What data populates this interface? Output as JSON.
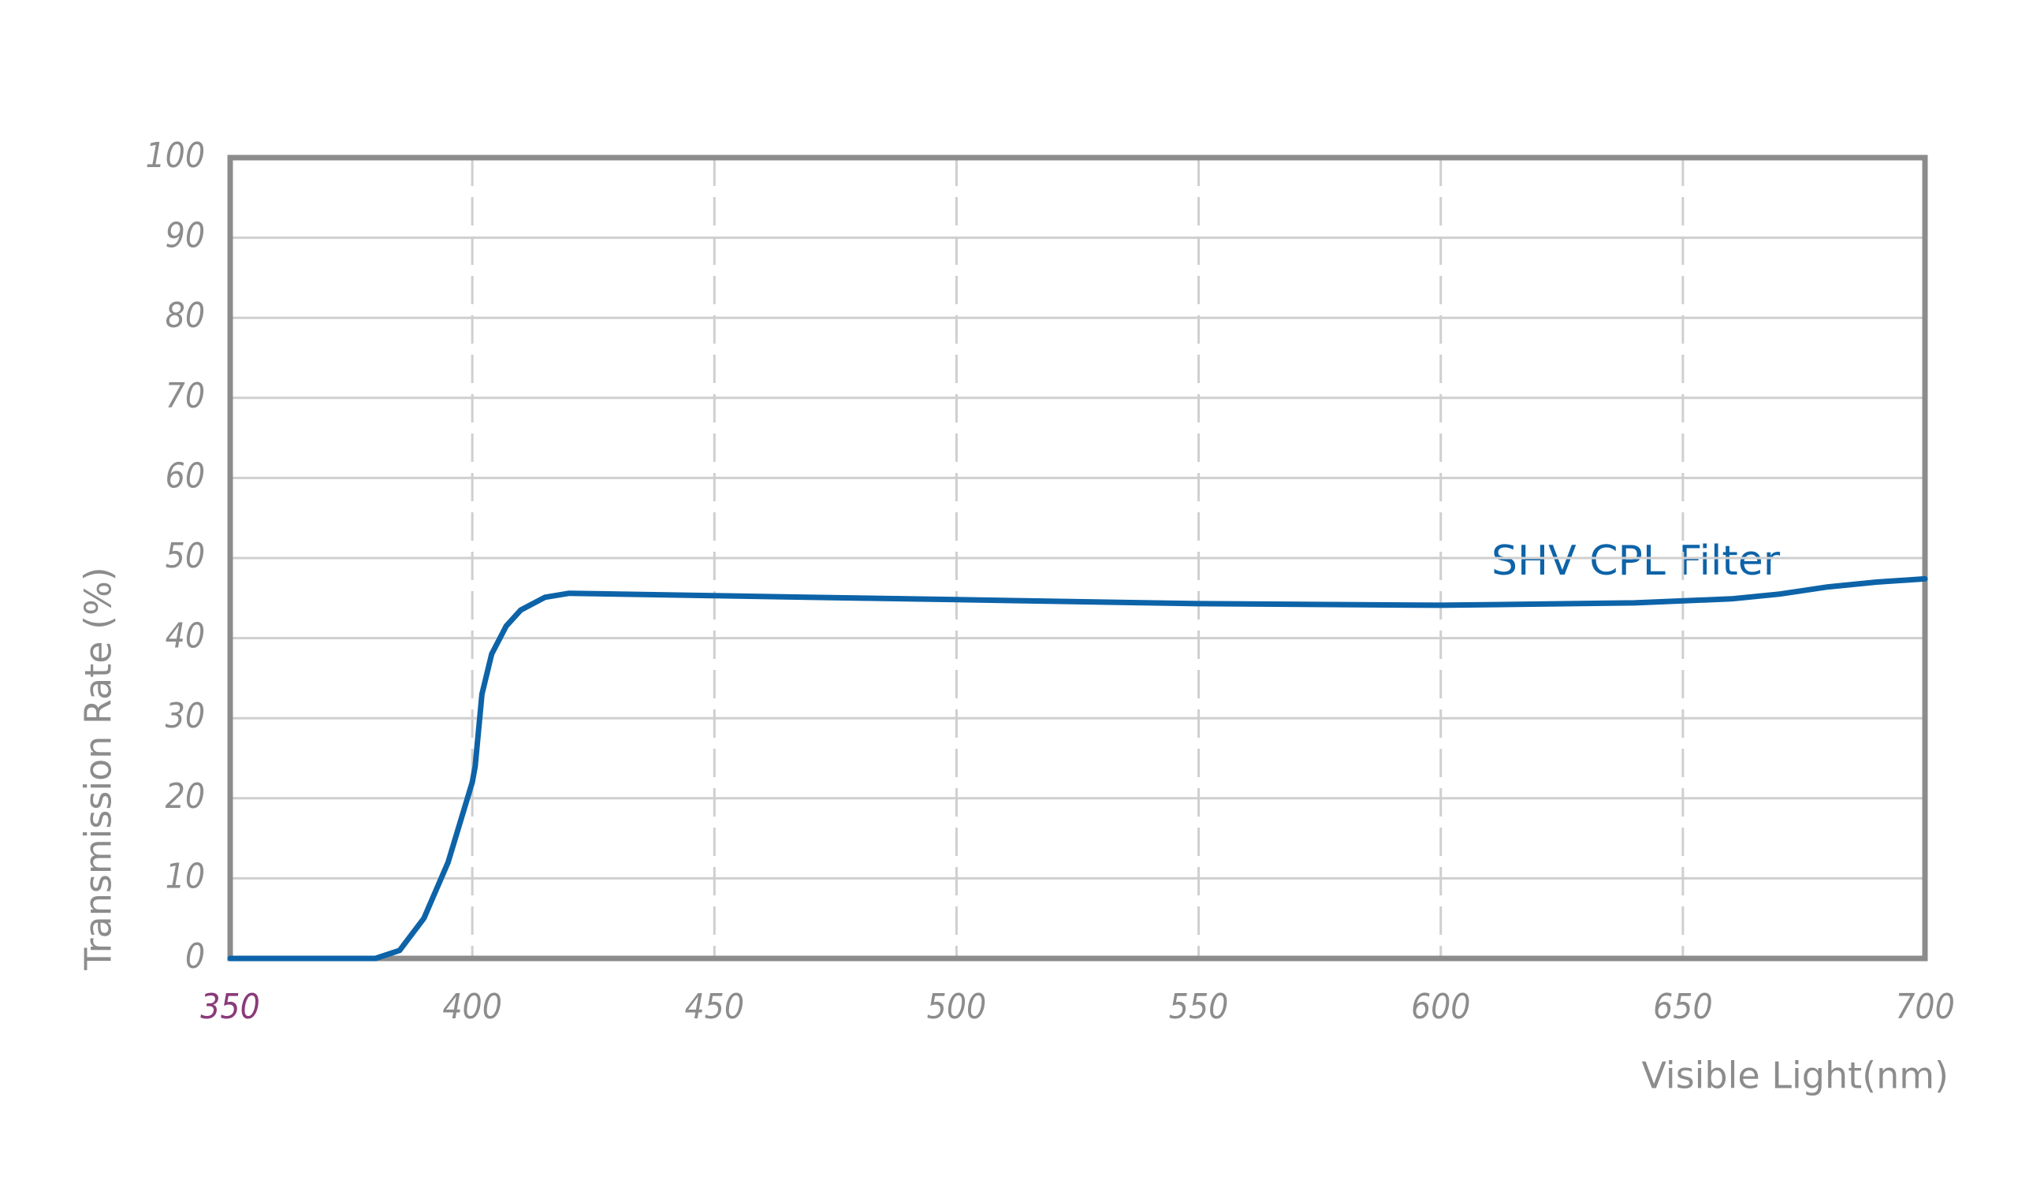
{
  "chart_data": {
    "type": "line",
    "annotation": "SHV CPL Filter",
    "x_label": "Visible Light(nm)",
    "y_label": "Transmission Rate (%)",
    "xlim": [
      350,
      700
    ],
    "xticks": [
      350,
      400,
      450,
      500,
      550,
      600,
      650,
      700
    ],
    "ylim": [
      0,
      100
    ],
    "yticks": [
      0,
      10,
      20,
      30,
      40,
      50,
      60,
      70,
      80,
      90,
      100
    ],
    "grid": true,
    "series": [
      {
        "name": "SHV CPL Filter",
        "color": "#0d63a8",
        "x": [
          350,
          380,
          385,
          390,
          395,
          400,
          400.6,
          402,
          404,
          407,
          410,
          415,
          420,
          450,
          500,
          550,
          600,
          640,
          660,
          670,
          680,
          690,
          700
        ],
        "values": [
          0,
          0,
          1,
          5,
          12,
          22,
          24,
          33,
          38,
          41.5,
          43.5,
          45.1,
          45.6,
          45.3,
          44.8,
          44.3,
          44.1,
          44.4,
          44.9,
          45.5,
          46.4,
          47.0,
          47.4
        ]
      }
    ]
  }
}
